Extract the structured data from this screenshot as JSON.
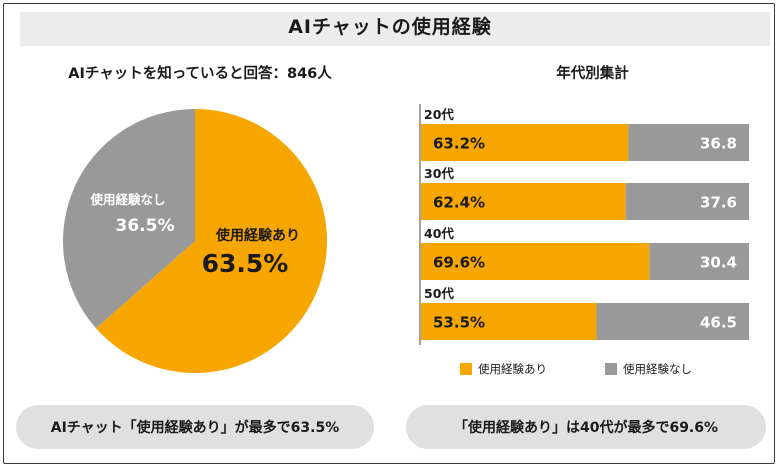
{
  "title": "AIチャットの使用経験",
  "colors": {
    "used": "#F7A600",
    "notused": "#999999"
  },
  "chart_data": [
    {
      "type": "pie",
      "title": "AIチャットを知っていると回答：846人",
      "slices": [
        {
          "name": "使用経験あり",
          "value": 63.5,
          "label": "63.5%"
        },
        {
          "name": "使用経験なし",
          "value": 36.5,
          "label": "36.5%"
        }
      ]
    },
    {
      "type": "bar",
      "orientation": "horizontal",
      "stacked": true,
      "title": "年代別集計",
      "categories": [
        "20代",
        "30代",
        "40代",
        "50代"
      ],
      "series": [
        {
          "name": "使用経験あり",
          "values": [
            63.2,
            62.4,
            69.6,
            53.5
          ],
          "labels": [
            "63.2%",
            "62.4%",
            "69.6%",
            "53.5%"
          ]
        },
        {
          "name": "使用経験なし",
          "values": [
            36.8,
            37.6,
            30.4,
            46.5
          ],
          "labels": [
            "36.8",
            "37.6",
            "30.4",
            "46.5"
          ]
        }
      ],
      "xlim": [
        0,
        100
      ],
      "legend": "bottom"
    }
  ],
  "notes": {
    "left": "AIチャット「使用経験あり」が最多で63.5%",
    "right": "「使用経験あり」は40代が最多で69.6%"
  }
}
